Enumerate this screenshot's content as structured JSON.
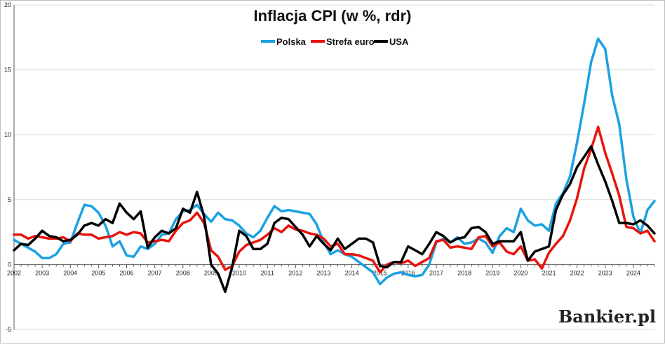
{
  "chart_data": {
    "type": "line",
    "title": "Inflacja CPI (w %, rdr)",
    "xlabel": "",
    "ylabel": "",
    "xlim": [
      2002,
      2024.75
    ],
    "ylim": [
      -5,
      20
    ],
    "y_ticks": [
      "-5",
      "0",
      "5",
      "10",
      "15",
      "20"
    ],
    "x_ticks": [
      "2002",
      "2003",
      "2004",
      "2005",
      "2006",
      "2007",
      "2008",
      "2009",
      "2010",
      "2011",
      "2012",
      "2013",
      "2014",
      "2015",
      "2016",
      "2017",
      "2018",
      "2019",
      "2020",
      "2021",
      "2022",
      "2023",
      "2024"
    ],
    "grid": "horizontal",
    "legend_position": "top-center",
    "series": [
      {
        "name": "Polska",
        "color": "#1ba1e2",
        "points": [
          [
            2002.0,
            1.9
          ],
          [
            2002.25,
            1.6
          ],
          [
            2002.5,
            1.3
          ],
          [
            2002.75,
            1.0
          ],
          [
            2003.0,
            0.5
          ],
          [
            2003.25,
            0.5
          ],
          [
            2003.5,
            0.8
          ],
          [
            2003.75,
            1.6
          ],
          [
            2004.0,
            1.7
          ],
          [
            2004.25,
            3.2
          ],
          [
            2004.5,
            4.6
          ],
          [
            2004.75,
            4.5
          ],
          [
            2005.0,
            4.0
          ],
          [
            2005.25,
            3.0
          ],
          [
            2005.5,
            1.4
          ],
          [
            2005.75,
            1.8
          ],
          [
            2006.0,
            0.7
          ],
          [
            2006.25,
            0.6
          ],
          [
            2006.5,
            1.4
          ],
          [
            2006.75,
            1.2
          ],
          [
            2007.0,
            1.6
          ],
          [
            2007.25,
            2.3
          ],
          [
            2007.5,
            2.4
          ],
          [
            2007.75,
            3.5
          ],
          [
            2008.0,
            4.1
          ],
          [
            2008.25,
            4.2
          ],
          [
            2008.5,
            4.6
          ],
          [
            2008.75,
            3.9
          ],
          [
            2009.0,
            3.3
          ],
          [
            2009.25,
            4.0
          ],
          [
            2009.5,
            3.5
          ],
          [
            2009.75,
            3.4
          ],
          [
            2010.0,
            3.0
          ],
          [
            2010.25,
            2.4
          ],
          [
            2010.5,
            2.1
          ],
          [
            2010.75,
            2.6
          ],
          [
            2011.0,
            3.6
          ],
          [
            2011.25,
            4.5
          ],
          [
            2011.5,
            4.1
          ],
          [
            2011.75,
            4.2
          ],
          [
            2012.0,
            4.1
          ],
          [
            2012.25,
            4.0
          ],
          [
            2012.5,
            3.9
          ],
          [
            2012.75,
            3.1
          ],
          [
            2013.0,
            1.7
          ],
          [
            2013.25,
            0.8
          ],
          [
            2013.5,
            1.1
          ],
          [
            2013.75,
            0.8
          ],
          [
            2014.0,
            0.6
          ],
          [
            2014.25,
            0.2
          ],
          [
            2014.5,
            -0.2
          ],
          [
            2014.75,
            -0.6
          ],
          [
            2015.0,
            -1.5
          ],
          [
            2015.25,
            -1.0
          ],
          [
            2015.5,
            -0.7
          ],
          [
            2015.75,
            -0.6
          ],
          [
            2016.0,
            -0.8
          ],
          [
            2016.25,
            -0.9
          ],
          [
            2016.5,
            -0.8
          ],
          [
            2016.75,
            0.0
          ],
          [
            2017.0,
            1.7
          ],
          [
            2017.25,
            2.0
          ],
          [
            2017.5,
            1.7
          ],
          [
            2017.75,
            2.1
          ],
          [
            2018.0,
            1.6
          ],
          [
            2018.25,
            1.7
          ],
          [
            2018.5,
            2.0
          ],
          [
            2018.75,
            1.7
          ],
          [
            2019.0,
            0.9
          ],
          [
            2019.25,
            2.2
          ],
          [
            2019.5,
            2.8
          ],
          [
            2019.75,
            2.5
          ],
          [
            2020.0,
            4.3
          ],
          [
            2020.25,
            3.4
          ],
          [
            2020.5,
            3.0
          ],
          [
            2020.75,
            3.1
          ],
          [
            2021.0,
            2.6
          ],
          [
            2021.25,
            4.7
          ],
          [
            2021.5,
            5.5
          ],
          [
            2021.75,
            6.8
          ],
          [
            2022.0,
            9.4
          ],
          [
            2022.25,
            12.4
          ],
          [
            2022.5,
            15.6
          ],
          [
            2022.75,
            17.4
          ],
          [
            2023.0,
            16.6
          ],
          [
            2023.25,
            13.0
          ],
          [
            2023.5,
            10.8
          ],
          [
            2023.75,
            6.6
          ],
          [
            2024.0,
            3.7
          ],
          [
            2024.25,
            2.4
          ],
          [
            2024.5,
            4.2
          ],
          [
            2024.75,
            4.9
          ]
        ]
      },
      {
        "name": "Strefa euro",
        "color": "#e8140c",
        "points": [
          [
            2002.0,
            2.3
          ],
          [
            2002.25,
            2.3
          ],
          [
            2002.5,
            2.0
          ],
          [
            2002.75,
            2.2
          ],
          [
            2003.0,
            2.1
          ],
          [
            2003.25,
            2.0
          ],
          [
            2003.5,
            2.0
          ],
          [
            2003.75,
            2.1
          ],
          [
            2004.0,
            1.8
          ],
          [
            2004.25,
            2.4
          ],
          [
            2004.5,
            2.3
          ],
          [
            2004.75,
            2.3
          ],
          [
            2005.0,
            2.0
          ],
          [
            2005.25,
            2.1
          ],
          [
            2005.5,
            2.2
          ],
          [
            2005.75,
            2.5
          ],
          [
            2006.0,
            2.3
          ],
          [
            2006.25,
            2.5
          ],
          [
            2006.5,
            2.4
          ],
          [
            2006.75,
            1.7
          ],
          [
            2007.0,
            1.8
          ],
          [
            2007.25,
            1.9
          ],
          [
            2007.5,
            1.8
          ],
          [
            2007.75,
            2.6
          ],
          [
            2008.0,
            3.2
          ],
          [
            2008.25,
            3.4
          ],
          [
            2008.5,
            4.0
          ],
          [
            2008.75,
            3.2
          ],
          [
            2009.0,
            1.1
          ],
          [
            2009.25,
            0.6
          ],
          [
            2009.5,
            -0.4
          ],
          [
            2009.75,
            -0.1
          ],
          [
            2010.0,
            1.0
          ],
          [
            2010.25,
            1.5
          ],
          [
            2010.5,
            1.7
          ],
          [
            2010.75,
            1.9
          ],
          [
            2011.0,
            2.3
          ],
          [
            2011.25,
            2.8
          ],
          [
            2011.5,
            2.5
          ],
          [
            2011.75,
            3.0
          ],
          [
            2012.0,
            2.7
          ],
          [
            2012.25,
            2.6
          ],
          [
            2012.5,
            2.4
          ],
          [
            2012.75,
            2.3
          ],
          [
            2013.0,
            2.0
          ],
          [
            2013.25,
            1.4
          ],
          [
            2013.5,
            1.6
          ],
          [
            2013.75,
            0.8
          ],
          [
            2014.0,
            0.8
          ],
          [
            2014.25,
            0.7
          ],
          [
            2014.5,
            0.5
          ],
          [
            2014.75,
            0.3
          ],
          [
            2015.0,
            -0.6
          ],
          [
            2015.25,
            0.0
          ],
          [
            2015.5,
            0.2
          ],
          [
            2015.75,
            0.1
          ],
          [
            2016.0,
            0.3
          ],
          [
            2016.25,
            -0.1
          ],
          [
            2016.5,
            0.2
          ],
          [
            2016.75,
            0.5
          ],
          [
            2017.0,
            1.8
          ],
          [
            2017.25,
            1.9
          ],
          [
            2017.5,
            1.3
          ],
          [
            2017.75,
            1.4
          ],
          [
            2018.0,
            1.3
          ],
          [
            2018.25,
            1.2
          ],
          [
            2018.5,
            2.1
          ],
          [
            2018.75,
            2.2
          ],
          [
            2019.0,
            1.4
          ],
          [
            2019.25,
            1.7
          ],
          [
            2019.5,
            1.0
          ],
          [
            2019.75,
            0.8
          ],
          [
            2020.0,
            1.4
          ],
          [
            2020.25,
            0.3
          ],
          [
            2020.5,
            0.4
          ],
          [
            2020.75,
            -0.3
          ],
          [
            2021.0,
            0.9
          ],
          [
            2021.25,
            1.6
          ],
          [
            2021.5,
            2.2
          ],
          [
            2021.75,
            3.4
          ],
          [
            2022.0,
            5.1
          ],
          [
            2022.25,
            7.4
          ],
          [
            2022.5,
            8.9
          ],
          [
            2022.75,
            10.6
          ],
          [
            2023.0,
            8.6
          ],
          [
            2023.25,
            7.0
          ],
          [
            2023.5,
            5.3
          ],
          [
            2023.75,
            2.9
          ],
          [
            2024.0,
            2.8
          ],
          [
            2024.25,
            2.4
          ],
          [
            2024.5,
            2.6
          ],
          [
            2024.75,
            1.8
          ]
        ]
      },
      {
        "name": "USA",
        "color": "#000000",
        "points": [
          [
            2002.0,
            1.1
          ],
          [
            2002.25,
            1.6
          ],
          [
            2002.5,
            1.5
          ],
          [
            2002.75,
            2.0
          ],
          [
            2003.0,
            2.6
          ],
          [
            2003.25,
            2.2
          ],
          [
            2003.5,
            2.1
          ],
          [
            2003.75,
            1.8
          ],
          [
            2004.0,
            1.9
          ],
          [
            2004.25,
            2.3
          ],
          [
            2004.5,
            3.0
          ],
          [
            2004.75,
            3.2
          ],
          [
            2005.0,
            3.0
          ],
          [
            2005.25,
            3.5
          ],
          [
            2005.5,
            3.2
          ],
          [
            2005.75,
            4.7
          ],
          [
            2006.0,
            4.0
          ],
          [
            2006.25,
            3.5
          ],
          [
            2006.5,
            4.1
          ],
          [
            2006.75,
            1.3
          ],
          [
            2007.0,
            2.1
          ],
          [
            2007.25,
            2.6
          ],
          [
            2007.5,
            2.4
          ],
          [
            2007.75,
            2.8
          ],
          [
            2008.0,
            4.3
          ],
          [
            2008.25,
            4.0
          ],
          [
            2008.5,
            5.6
          ],
          [
            2008.75,
            3.7
          ],
          [
            2009.0,
            0.0
          ],
          [
            2009.25,
            -0.7
          ],
          [
            2009.5,
            -2.1
          ],
          [
            2009.75,
            -0.2
          ],
          [
            2010.0,
            2.6
          ],
          [
            2010.25,
            2.2
          ],
          [
            2010.5,
            1.2
          ],
          [
            2010.75,
            1.2
          ],
          [
            2011.0,
            1.6
          ],
          [
            2011.25,
            3.2
          ],
          [
            2011.5,
            3.6
          ],
          [
            2011.75,
            3.5
          ],
          [
            2012.0,
            2.9
          ],
          [
            2012.25,
            2.3
          ],
          [
            2012.5,
            1.4
          ],
          [
            2012.75,
            2.2
          ],
          [
            2013.0,
            1.6
          ],
          [
            2013.25,
            1.1
          ],
          [
            2013.5,
            2.0
          ],
          [
            2013.75,
            1.2
          ],
          [
            2014.0,
            1.6
          ],
          [
            2014.25,
            2.0
          ],
          [
            2014.5,
            2.0
          ],
          [
            2014.75,
            1.7
          ],
          [
            2015.0,
            -0.1
          ],
          [
            2015.25,
            -0.2
          ],
          [
            2015.5,
            0.2
          ],
          [
            2015.75,
            0.2
          ],
          [
            2016.0,
            1.4
          ],
          [
            2016.25,
            1.1
          ],
          [
            2016.5,
            0.8
          ],
          [
            2016.75,
            1.6
          ],
          [
            2017.0,
            2.5
          ],
          [
            2017.25,
            2.2
          ],
          [
            2017.5,
            1.7
          ],
          [
            2017.75,
            2.0
          ],
          [
            2018.0,
            2.1
          ],
          [
            2018.25,
            2.8
          ],
          [
            2018.5,
            2.9
          ],
          [
            2018.75,
            2.5
          ],
          [
            2019.0,
            1.6
          ],
          [
            2019.25,
            1.8
          ],
          [
            2019.5,
            1.8
          ],
          [
            2019.75,
            1.8
          ],
          [
            2020.0,
            2.5
          ],
          [
            2020.25,
            0.3
          ],
          [
            2020.5,
            1.0
          ],
          [
            2020.75,
            1.2
          ],
          [
            2021.0,
            1.4
          ],
          [
            2021.25,
            4.2
          ],
          [
            2021.5,
            5.4
          ],
          [
            2021.75,
            6.2
          ],
          [
            2022.0,
            7.5
          ],
          [
            2022.25,
            8.3
          ],
          [
            2022.5,
            9.1
          ],
          [
            2022.75,
            7.7
          ],
          [
            2023.0,
            6.4
          ],
          [
            2023.25,
            4.9
          ],
          [
            2023.5,
            3.2
          ],
          [
            2023.75,
            3.2
          ],
          [
            2024.0,
            3.1
          ],
          [
            2024.25,
            3.4
          ],
          [
            2024.5,
            3.0
          ],
          [
            2024.75,
            2.4
          ]
        ]
      }
    ]
  },
  "brand": "Bankier.pl",
  "colors": {
    "grid": "#d8d8d8",
    "axis": "#555555"
  }
}
